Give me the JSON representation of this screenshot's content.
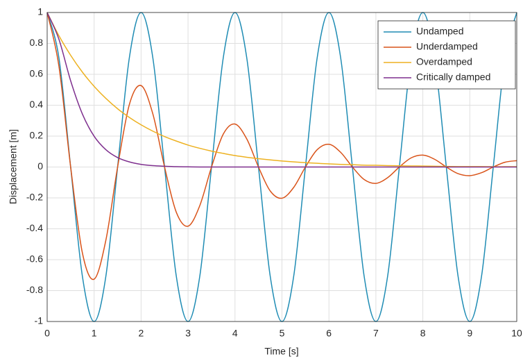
{
  "chart_data": {
    "type": "line",
    "xlabel": "Time [s]",
    "ylabel": "Displacement [m]",
    "xlim": [
      0,
      10
    ],
    "ylim": [
      -1,
      1
    ],
    "xticks": [
      0,
      1,
      2,
      3,
      4,
      5,
      6,
      7,
      8,
      9,
      10
    ],
    "yticks": [
      -1,
      -0.8,
      -0.6,
      -0.4,
      -0.2,
      0,
      0.2,
      0.4,
      0.6,
      0.8,
      1
    ],
    "grid": true,
    "legend": "upper-right",
    "x": [
      0,
      0.25,
      0.5,
      0.75,
      1,
      1.25,
      1.5,
      1.75,
      2,
      2.25,
      2.5,
      2.75,
      3,
      3.25,
      3.5,
      3.75,
      4,
      4.25,
      4.5,
      4.75,
      5,
      5.25,
      5.5,
      5.75,
      6,
      6.25,
      6.5,
      6.75,
      7,
      7.25,
      7.5,
      7.75,
      8,
      8.25,
      8.5,
      8.75,
      9,
      9.25,
      9.5,
      9.75,
      10
    ],
    "series": [
      {
        "name": "Undamped",
        "color": "#1f8cb4",
        "values": [
          1,
          0.707,
          0,
          -0.707,
          -1,
          -0.707,
          0,
          0.707,
          1,
          0.707,
          0,
          -0.707,
          -1,
          -0.707,
          0,
          0.707,
          1,
          0.707,
          0,
          -0.707,
          -1,
          -0.707,
          0,
          0.707,
          1,
          0.707,
          0,
          -0.707,
          -1,
          -0.707,
          0,
          0.707,
          1,
          0.707,
          0,
          -0.707,
          -1,
          -0.707,
          0,
          0.707,
          1
        ]
      },
      {
        "name": "Underdamped",
        "color": "#d95319",
        "values": [
          1,
          0.653,
          0,
          -0.556,
          -0.726,
          -0.474,
          0,
          0.404,
          0.527,
          0.344,
          0,
          -0.293,
          -0.383,
          -0.25,
          0,
          0.213,
          0.278,
          0.182,
          0,
          -0.155,
          -0.202,
          -0.132,
          0,
          0.112,
          0.147,
          0.095,
          0,
          -0.081,
          -0.106,
          -0.069,
          0,
          0.059,
          0.077,
          0.05,
          0,
          -0.043,
          -0.056,
          -0.037,
          0,
          0.031,
          0.041
        ]
      },
      {
        "name": "Overdamped",
        "color": "#edb120",
        "values": [
          1,
          0.85,
          0.723,
          0.614,
          0.522,
          0.444,
          0.377,
          0.321,
          0.273,
          0.232,
          0.197,
          0.168,
          0.142,
          0.121,
          0.103,
          0.088,
          0.074,
          0.063,
          0.054,
          0.046,
          0.039,
          0.033,
          0.028,
          0.024,
          0.02,
          0.017,
          0.015,
          0.012,
          0.011,
          0.009,
          0.008,
          0.007,
          0.006,
          0.005,
          0.004,
          0.003,
          0.003,
          0.003,
          0.002,
          0.002,
          0.002
        ]
      },
      {
        "name": "Critically damped",
        "color": "#7e2f8e",
        "values": [
          1,
          0.827,
          0.558,
          0.343,
          0.199,
          0.112,
          0.061,
          0.033,
          0.017,
          0.009,
          0.005,
          0.002,
          0.001,
          0,
          0,
          0,
          0,
          0,
          0,
          0,
          0,
          0,
          0,
          0,
          0,
          0,
          0,
          0,
          0,
          0,
          0,
          0,
          0,
          0,
          0,
          0,
          0,
          0,
          0,
          0,
          0
        ]
      }
    ]
  }
}
